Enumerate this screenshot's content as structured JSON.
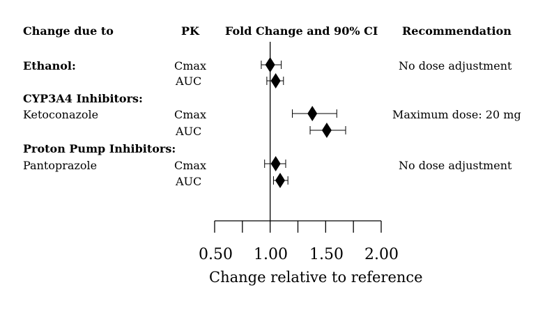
{
  "headers": {
    "col1": "Change due to",
    "col2": "PK",
    "col3": "Fold Change and 90% CI",
    "col4": "Recommendation"
  },
  "groups": [
    {
      "label": "Ethanol:",
      "bold": true
    },
    {
      "label": "CYP3A4 Inhibitors:",
      "bold": true
    },
    {
      "label": "Ketoconazole",
      "bold": false
    },
    {
      "label": "Proton Pump Inhibitors:",
      "bold": true
    },
    {
      "label": "Pantoprazole",
      "bold": false
    }
  ],
  "chart_data": {
    "type": "scatter",
    "subtype": "forest-plot",
    "xlabel": "Change relative to reference",
    "xlim": [
      0.5,
      2.0
    ],
    "xticks": [
      "0.50",
      "1.00",
      "1.50",
      "2.00"
    ],
    "minor_ticks": [
      0.75,
      1.25,
      1.75
    ],
    "reference_line": 1.0,
    "rows": [
      {
        "group": "Ethanol:",
        "pk": "Cmax",
        "estimate": 1.0,
        "ci_low": 0.92,
        "ci_high": 1.1,
        "recommendation": "No dose adjustment"
      },
      {
        "group": "Ethanol:",
        "pk": "AUC",
        "estimate": 1.05,
        "ci_low": 0.97,
        "ci_high": 1.12,
        "recommendation": ""
      },
      {
        "group": "Ketoconazole",
        "pk": "Cmax",
        "estimate": 1.38,
        "ci_low": 1.2,
        "ci_high": 1.6,
        "recommendation": "Maximum dose: 20 mg"
      },
      {
        "group": "Ketoconazole",
        "pk": "AUC",
        "estimate": 1.51,
        "ci_low": 1.36,
        "ci_high": 1.68,
        "recommendation": ""
      },
      {
        "group": "Pantoprazole",
        "pk": "Cmax",
        "estimate": 1.05,
        "ci_low": 0.95,
        "ci_high": 1.14,
        "recommendation": "No dose adjustment"
      },
      {
        "group": "Pantoprazole",
        "pk": "AUC",
        "estimate": 1.09,
        "ci_low": 1.03,
        "ci_high": 1.16,
        "recommendation": ""
      }
    ]
  }
}
